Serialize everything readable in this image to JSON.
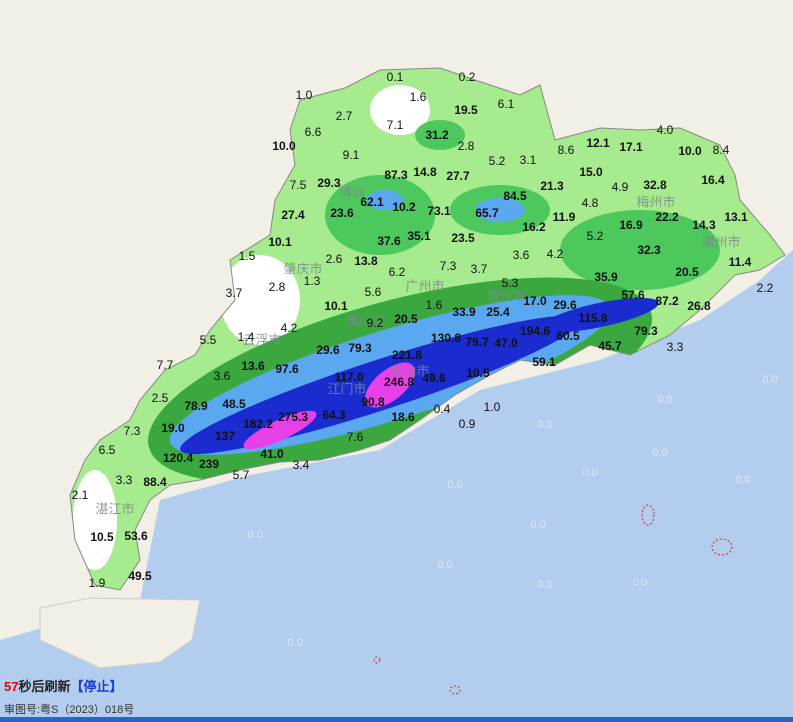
{
  "rainfall_labels": [
    "0.1",
    "0.2",
    "1.0",
    "1.6",
    "19.5",
    "6.1",
    "2.7",
    "7.1",
    "6.6",
    "31.2",
    "2.8",
    "4.0",
    "12.1",
    "17.1",
    "10.0",
    "9.1",
    "5.2",
    "3.1",
    "8.6",
    "10.0",
    "8.4",
    "87.3",
    "14.8",
    "27.7",
    "15.0",
    "7.5",
    "29.3",
    "62.1",
    "21.3",
    "4.9",
    "32.8",
    "16.4",
    "84.5",
    "4.8",
    "27.4",
    "23.6",
    "10.2",
    "73.1",
    "65.7",
    "11.9",
    "22.2",
    "13.1",
    "16.9",
    "14.3",
    "16.2",
    "5.2",
    "10.1",
    "37.6",
    "35.1",
    "23.5",
    "3.6",
    "4.2",
    "32.3",
    "1.5",
    "13.8",
    "6.2",
    "7.3",
    "3.7",
    "2.6",
    "1.3",
    "20.5",
    "11.4",
    "35.9",
    "2.8",
    "3.7",
    "5.6",
    "5.3",
    "2.2",
    "10.1",
    "1.6",
    "17.0",
    "29.6",
    "57.6",
    "87.2",
    "26.8",
    "9.2",
    "20.5",
    "33.9",
    "25.4",
    "5.5",
    "1.4",
    "4.2",
    "115.8",
    "79.3",
    "29.6",
    "79.3",
    "130.8",
    "79.7",
    "47.0",
    "194.6",
    "60.5",
    "45.7",
    "3.3",
    "7.7",
    "13.6",
    "97.6",
    "221.8",
    "59.1",
    "3.6",
    "117.0",
    "246.8",
    "49.6",
    "10.5",
    "0.0",
    "2.5",
    "78.9",
    "48.5",
    "90.8",
    "0.4",
    "1.0",
    "0.0",
    "19.0",
    "7.3",
    "182.2",
    "275.3",
    "64.3",
    "18.6",
    "0.9",
    "0.0",
    "7.6",
    "137",
    "6.5",
    "41.0",
    "3.4",
    "0.0",
    "120.4",
    "239",
    "5.7",
    "3.3",
    "88.4",
    "0.0",
    "0.0",
    "0.0",
    "2.1",
    "53.6",
    "10.5",
    "0.0",
    "0.0",
    "0.0",
    "0.0",
    "0.0",
    "49.5",
    "1.9",
    "0.0"
  ],
  "city_labels": [
    "清远",
    "肇庆市",
    "广州市",
    "惠州市",
    "梅州市",
    "潮州市",
    "云浮市",
    "佛山市",
    "江门市",
    "中山市",
    "湛江市"
  ],
  "footer": {
    "countdown": "57",
    "refresh": "秒后刷新",
    "stop": "【停止】",
    "approval": "审图号:粤S（2023）018号"
  }
}
